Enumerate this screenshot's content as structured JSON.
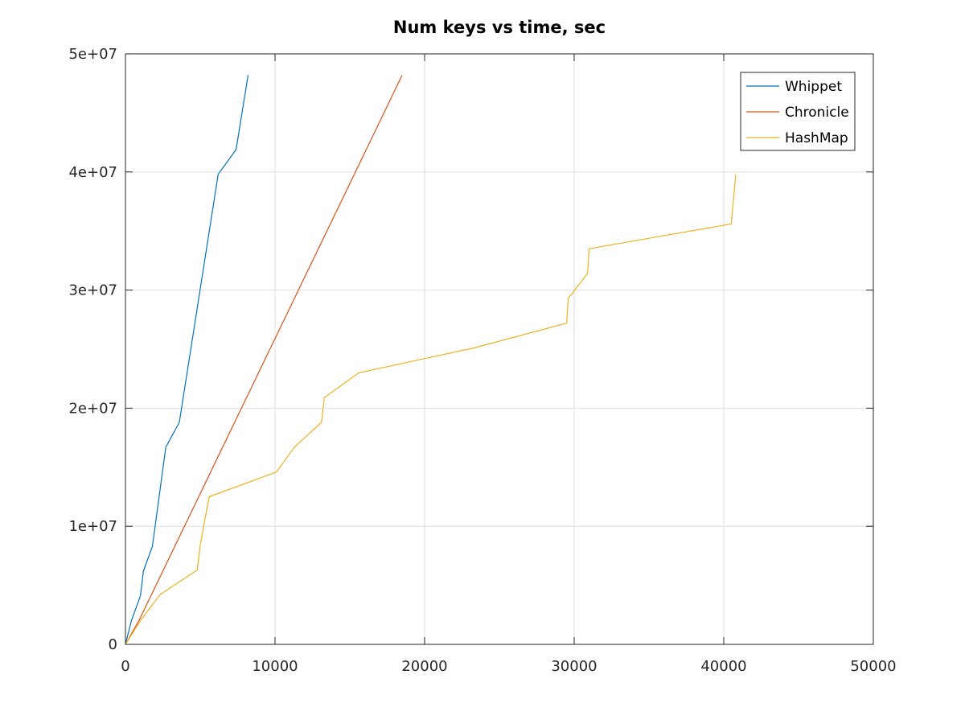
{
  "chart_data": {
    "type": "line",
    "title": "Num keys vs time, sec",
    "xlabel": "",
    "ylabel": "",
    "xlim": [
      0,
      50000
    ],
    "ylim": [
      0,
      50000000
    ],
    "grid": true,
    "legend_position": "top-right",
    "x_ticks": [
      {
        "value": 0,
        "label": "0"
      },
      {
        "value": 10000,
        "label": "10000"
      },
      {
        "value": 20000,
        "label": "20000"
      },
      {
        "value": 30000,
        "label": "30000"
      },
      {
        "value": 40000,
        "label": "40000"
      },
      {
        "value": 50000,
        "label": "50000"
      }
    ],
    "y_ticks": [
      {
        "value": 0,
        "label": "0"
      },
      {
        "value": 10000000,
        "label": "1e+07"
      },
      {
        "value": 20000000,
        "label": "2e+07"
      },
      {
        "value": 30000000,
        "label": "3e+07"
      },
      {
        "value": 40000000,
        "label": "4e+07"
      },
      {
        "value": 50000000,
        "label": "5e+07"
      }
    ],
    "series": [
      {
        "name": "Whippet",
        "color": "#0072bd",
        "points": [
          [
            0,
            0
          ],
          [
            400,
            2000000
          ],
          [
            1000,
            4100000
          ],
          [
            1200,
            6200000
          ],
          [
            1800,
            8300000
          ],
          [
            2700,
            16700000
          ],
          [
            3600,
            18800000
          ],
          [
            6200,
            39800000
          ],
          [
            7400,
            41900000
          ],
          [
            8200,
            48200000
          ]
        ]
      },
      {
        "name": "Chronicle",
        "color": "#d95319",
        "points": [
          [
            0,
            0
          ],
          [
            900,
            2000000
          ],
          [
            18500,
            48200000
          ]
        ]
      },
      {
        "name": "HashMap",
        "color": "#edb120",
        "points": [
          [
            0,
            0
          ],
          [
            1000,
            2000000
          ],
          [
            2300,
            4200000
          ],
          [
            4800,
            6300000
          ],
          [
            5000,
            8400000
          ],
          [
            5300,
            10500000
          ],
          [
            5600,
            12500000
          ],
          [
            10100,
            14600000
          ],
          [
            11300,
            16700000
          ],
          [
            13100,
            18800000
          ],
          [
            13300,
            20900000
          ],
          [
            15600,
            23000000
          ],
          [
            23300,
            25100000
          ],
          [
            29500,
            27200000
          ],
          [
            29600,
            29300000
          ],
          [
            30900,
            31400000
          ],
          [
            31000,
            33500000
          ],
          [
            40500,
            35600000
          ],
          [
            40800,
            39800000
          ]
        ]
      }
    ]
  }
}
